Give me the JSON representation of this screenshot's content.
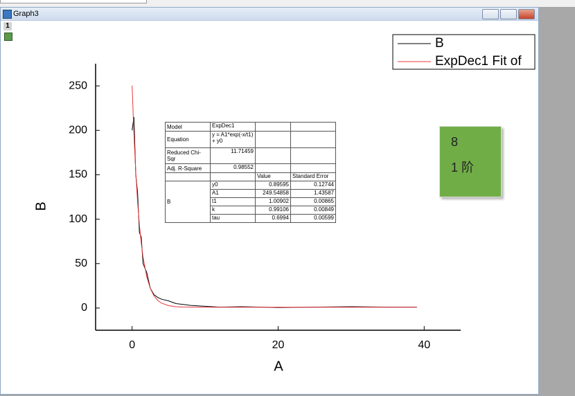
{
  "window": {
    "title": "Graph3",
    "layer": "1"
  },
  "chart_data": {
    "type": "line",
    "xlabel": "A",
    "ylabel": "B",
    "x": [
      0,
      0.25,
      0.5,
      0.75,
      1,
      1.25,
      1.5,
      2,
      2.5,
      3,
      3.5,
      4,
      5,
      6,
      7,
      8,
      10,
      12,
      15,
      20,
      25,
      30,
      35,
      39
    ],
    "series": [
      {
        "name": "B",
        "color": "#000000",
        "values": [
          200,
          215,
          150,
          130,
          85,
          80,
          50,
          40,
          22,
          15,
          12,
          10,
          8,
          5,
          4,
          3,
          2,
          1,
          1.5,
          0.5,
          1,
          1.5,
          1,
          1
        ]
      },
      {
        "name": "ExpDec1 Fit of",
        "color": "#e8383b",
        "values": [
          250.4,
          195.6,
          152.9,
          119.5,
          93.5,
          73.2,
          57.3,
          35.3,
          21.8,
          13.7,
          8.7,
          5.6,
          2.7,
          1.5,
          1.1,
          1.0,
          0.9,
          0.9,
          0.9,
          0.9,
          0.9,
          0.9,
          0.9,
          0.9
        ]
      }
    ],
    "xlim": [
      -5,
      45
    ],
    "ylim": [
      -25,
      275
    ],
    "xticks": [
      0,
      20,
      40
    ],
    "yticks": [
      0,
      50,
      100,
      150,
      200,
      250
    ]
  },
  "fit_table": {
    "summary": [
      {
        "label": "Model",
        "value": "ExpDec1"
      },
      {
        "label": "Equation",
        "value": "y = A1*exp(-x/t1) + y0"
      },
      {
        "label": "Reduced Chi-Sqr",
        "value": "11.71459"
      },
      {
        "label": "Adj. R-Square",
        "value": "0.98552"
      }
    ],
    "header": [
      "Value",
      "Standard Error"
    ],
    "group": "B",
    "params": [
      [
        "y0",
        "0.89595",
        "0.12744"
      ],
      [
        "A1",
        "249.54858",
        "1.43587"
      ],
      [
        "t1",
        "1.00902",
        "0.00865"
      ],
      [
        "k",
        "0.99106",
        "0.00849"
      ],
      [
        "tau",
        "0.6994",
        "0.00599"
      ]
    ]
  },
  "note": {
    "lines": [
      "8",
      "1 阶"
    ]
  }
}
